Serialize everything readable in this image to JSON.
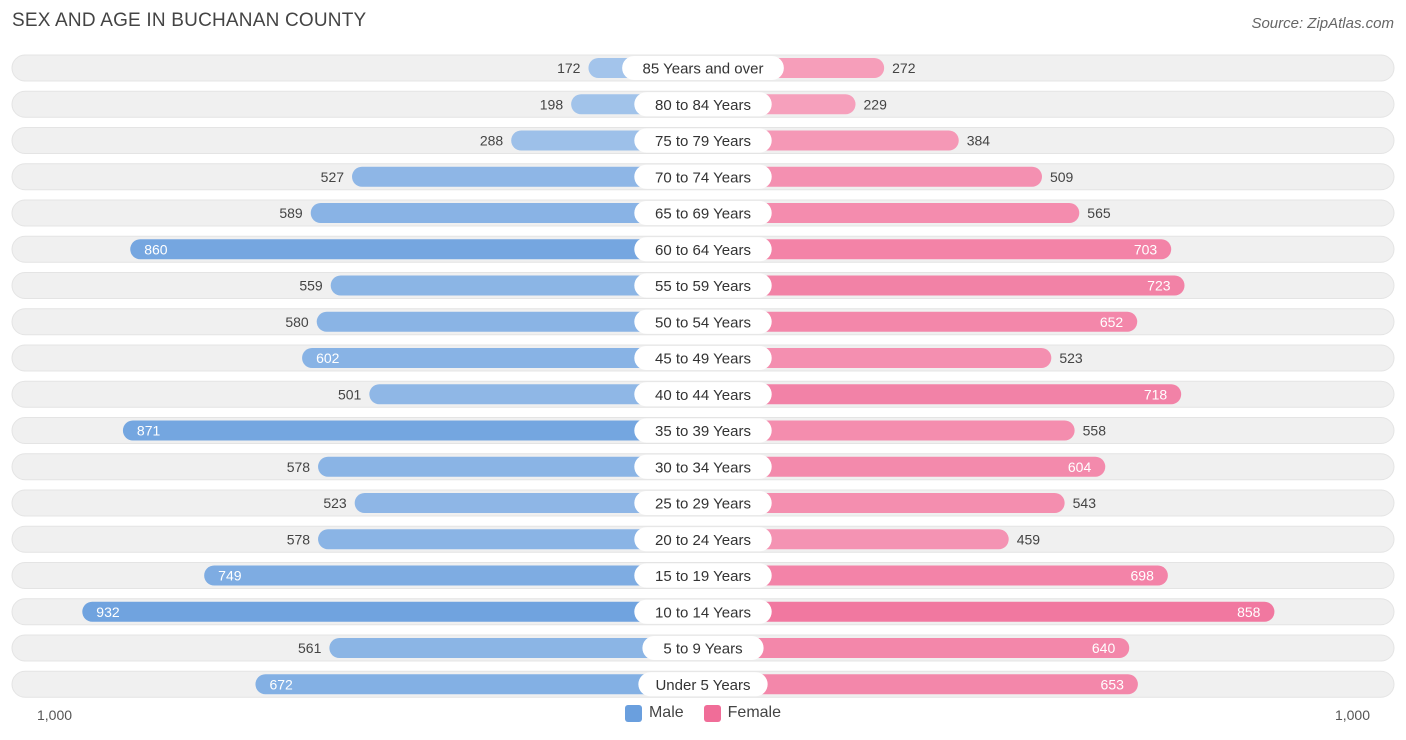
{
  "title": "SEX AND AGE IN BUCHANAN COUNTY",
  "source": "Source: ZipAtlas.com",
  "legend": {
    "male": "Male",
    "female": "Female"
  },
  "axis": {
    "left_label": "1,000",
    "right_label": "1,000"
  },
  "colors": {
    "male_light": "#a9c8ec",
    "male_dark": "#6a9fde",
    "female_light": "#f7a9c2",
    "female_dark": "#f06d98",
    "row_bg": "#f0f0f0"
  },
  "chart_data": {
    "type": "bar",
    "orientation": "horizontal-butterfly",
    "title": "SEX AND AGE IN BUCHANAN COUNTY",
    "categories": [
      "85 Years and over",
      "80 to 84 Years",
      "75 to 79 Years",
      "70 to 74 Years",
      "65 to 69 Years",
      "60 to 64 Years",
      "55 to 59 Years",
      "50 to 54 Years",
      "45 to 49 Years",
      "40 to 44 Years",
      "35 to 39 Years",
      "30 to 34 Years",
      "25 to 29 Years",
      "20 to 24 Years",
      "15 to 19 Years",
      "10 to 14 Years",
      "5 to 9 Years",
      "Under 5 Years"
    ],
    "series": [
      {
        "name": "Male",
        "values": [
          172,
          198,
          288,
          527,
          589,
          860,
          559,
          580,
          602,
          501,
          871,
          578,
          523,
          578,
          749,
          932,
          561,
          672
        ]
      },
      {
        "name": "Female",
        "values": [
          272,
          229,
          384,
          509,
          565,
          703,
          723,
          652,
          523,
          718,
          558,
          604,
          543,
          459,
          698,
          858,
          640,
          653
        ]
      }
    ],
    "xlim": [
      0,
      1000
    ],
    "legend_position": "bottom-center"
  }
}
